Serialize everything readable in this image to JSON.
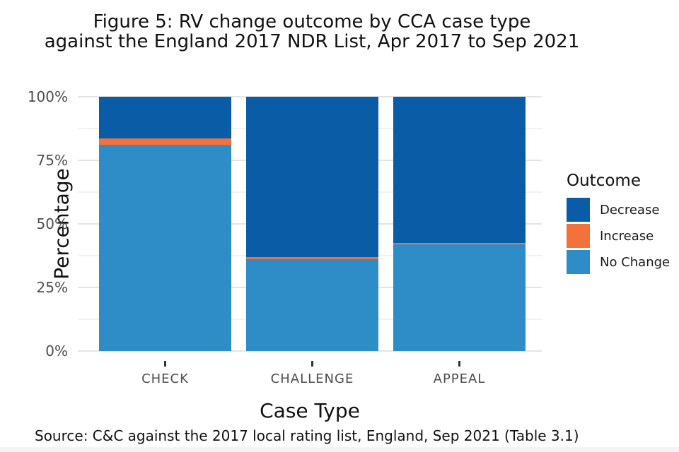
{
  "title": {
    "line1": "Figure 5: RV change outcome by CCA case type",
    "line2": "against the England 2017 NDR List, Apr 2017 to Sep 2021"
  },
  "source": "Source: C&C against the 2017 local rating list, England, Sep 2021 (Table 3.1)",
  "legend": {
    "title": "Outcome",
    "items": [
      {
        "label": "Decrease",
        "color": "#0a5ca6"
      },
      {
        "label": "Increase",
        "color": "#f3713a"
      },
      {
        "label": "No Change",
        "color": "#2e8cc7"
      }
    ]
  },
  "chart_data": {
    "type": "bar",
    "subtype": "stacked-percent",
    "title": "Figure 5: RV change outcome by CCA case type against the England 2017 NDR List, Apr 2017 to Sep 2021",
    "xlabel": "Case Type",
    "ylabel": "Percentage",
    "categories": [
      "CHECK",
      "CHALLENGE",
      "APPEAL"
    ],
    "series": [
      {
        "name": "Decrease",
        "color": "#0a5ca6",
        "values": [
          16.5,
          63,
          57.5
        ]
      },
      {
        "name": "Increase",
        "color": "#f3713a",
        "values": [
          2.5,
          1,
          0.5
        ]
      },
      {
        "name": "No Change",
        "color": "#2e8cc7",
        "values": [
          81,
          36,
          42
        ]
      }
    ],
    "stack_order_bottom_to_top": [
      "No Change",
      "Increase",
      "Decrease"
    ],
    "ylim": [
      0,
      100
    ],
    "yticks_major": [
      0,
      25,
      50,
      75,
      100
    ],
    "ytick_labels": [
      "0%",
      "25%",
      "50%",
      "75%",
      "100%"
    ],
    "yticks_minor": [
      12.5,
      37.5,
      62.5,
      87.5
    ],
    "grid": true,
    "legend_position": "right"
  }
}
